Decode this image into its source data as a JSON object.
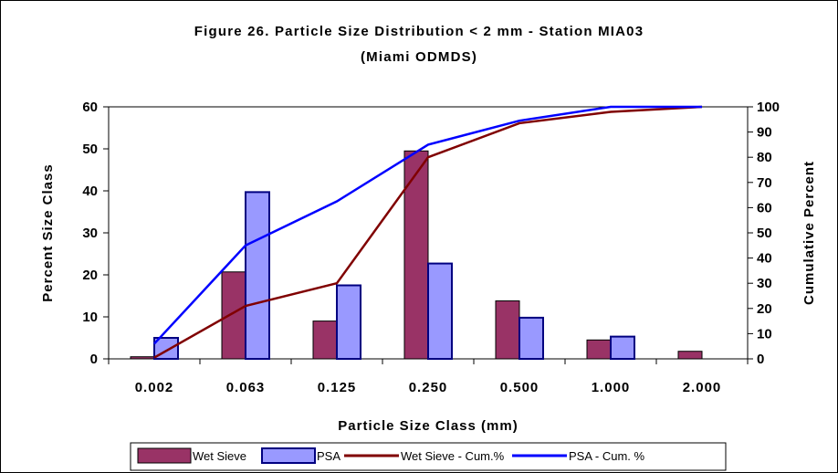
{
  "chart_data": {
    "type": "bar",
    "title": "Figure 26. Particle Size Distribution < 2 mm - Station MIA03",
    "subtitle": "(Miami ODMDS)",
    "xlabel": "Particle Size Class (mm)",
    "ylabel": "Percent Size Class",
    "y2label": "Cumulative Percent",
    "categories": [
      "0.002",
      "0.063",
      "0.125",
      "0.250",
      "0.500",
      "1.000",
      "2.000"
    ],
    "ylim": [
      0,
      60
    ],
    "y2lim": [
      0,
      100
    ],
    "yticks": [
      0,
      10,
      20,
      30,
      40,
      50,
      60
    ],
    "y2ticks": [
      0,
      10,
      20,
      30,
      40,
      50,
      60,
      70,
      80,
      90,
      100
    ],
    "grid": false,
    "legend_position": "bottom",
    "series": [
      {
        "name": "Wet Sieve",
        "kind": "bar",
        "axis": "left",
        "color": "#993366",
        "values": [
          0.5,
          20.7,
          9,
          49.5,
          13.8,
          4.5,
          1.8
        ]
      },
      {
        "name": "PSA",
        "kind": "bar",
        "axis": "left",
        "color": "#9999ff",
        "values": [
          5,
          39.7,
          17.5,
          22.7,
          9.8,
          5.3,
          0
        ]
      },
      {
        "name": "Wet Sieve - Cum.%",
        "kind": "line",
        "axis": "right",
        "color": "#800000",
        "values": [
          0.5,
          21,
          30,
          80,
          93.5,
          98,
          100
        ]
      },
      {
        "name": "PSA - Cum. %",
        "kind": "line",
        "axis": "right",
        "color": "#0000ff",
        "values": [
          6,
          45,
          62.5,
          85,
          94.5,
          100,
          100
        ]
      }
    ]
  }
}
